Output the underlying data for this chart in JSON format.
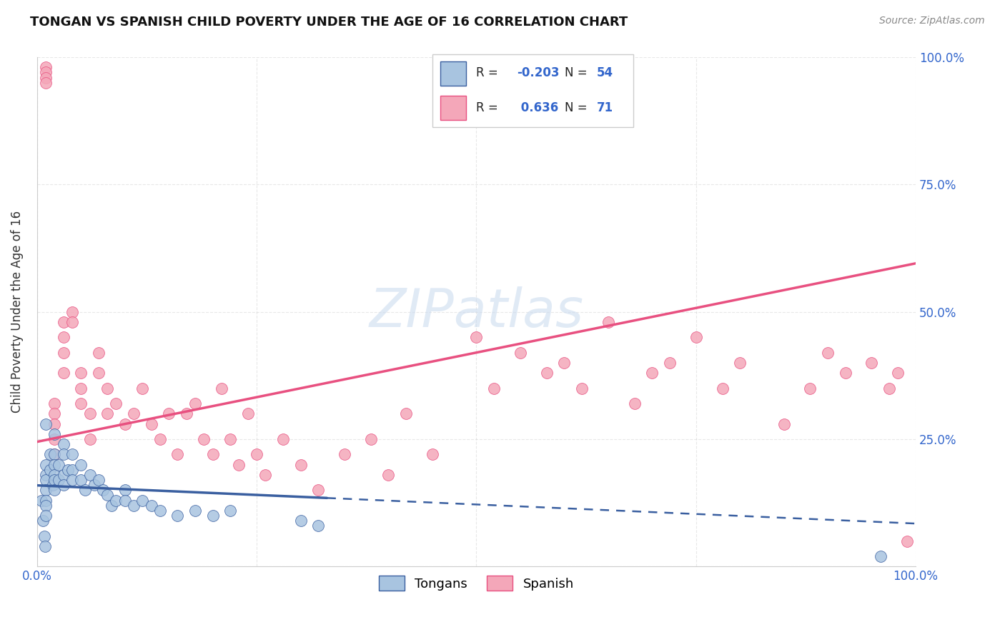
{
  "title": "TONGAN VS SPANISH CHILD POVERTY UNDER THE AGE OF 16 CORRELATION CHART",
  "source": "Source: ZipAtlas.com",
  "ylabel": "Child Poverty Under the Age of 16",
  "xlim": [
    0.0,
    1.0
  ],
  "ylim": [
    0.0,
    1.0
  ],
  "xticks": [
    0.0,
    0.25,
    0.5,
    0.75,
    1.0
  ],
  "yticks": [
    0.0,
    0.25,
    0.5,
    0.75,
    1.0
  ],
  "legend_r_tongan": "-0.203",
  "legend_n_tongan": "54",
  "legend_r_spanish": "0.636",
  "legend_n_spanish": "71",
  "tongan_color": "#a8c4e0",
  "spanish_color": "#f4a7b9",
  "tongan_line_color": "#3a5fa0",
  "spanish_line_color": "#e85080",
  "background_color": "#ffffff",
  "tongan_x": [
    0.005,
    0.007,
    0.008,
    0.009,
    0.01,
    0.01,
    0.01,
    0.01,
    0.01,
    0.01,
    0.01,
    0.01,
    0.015,
    0.015,
    0.018,
    0.02,
    0.02,
    0.02,
    0.02,
    0.02,
    0.02,
    0.025,
    0.025,
    0.03,
    0.03,
    0.03,
    0.03,
    0.035,
    0.04,
    0.04,
    0.04,
    0.05,
    0.05,
    0.055,
    0.06,
    0.065,
    0.07,
    0.075,
    0.08,
    0.085,
    0.09,
    0.1,
    0.1,
    0.11,
    0.12,
    0.13,
    0.14,
    0.16,
    0.18,
    0.2,
    0.22,
    0.3,
    0.32,
    0.96
  ],
  "tongan_y": [
    0.13,
    0.09,
    0.06,
    0.04,
    0.28,
    0.2,
    0.18,
    0.17,
    0.15,
    0.13,
    0.12,
    0.1,
    0.22,
    0.19,
    0.16,
    0.26,
    0.22,
    0.2,
    0.18,
    0.17,
    0.15,
    0.2,
    0.17,
    0.24,
    0.22,
    0.18,
    0.16,
    0.19,
    0.22,
    0.19,
    0.17,
    0.2,
    0.17,
    0.15,
    0.18,
    0.16,
    0.17,
    0.15,
    0.14,
    0.12,
    0.13,
    0.15,
    0.13,
    0.12,
    0.13,
    0.12,
    0.11,
    0.1,
    0.11,
    0.1,
    0.11,
    0.09,
    0.08,
    0.02
  ],
  "spanish_x": [
    0.01,
    0.01,
    0.01,
    0.01,
    0.02,
    0.02,
    0.02,
    0.02,
    0.02,
    0.03,
    0.03,
    0.03,
    0.03,
    0.04,
    0.04,
    0.05,
    0.05,
    0.05,
    0.06,
    0.06,
    0.07,
    0.07,
    0.08,
    0.08,
    0.09,
    0.1,
    0.11,
    0.12,
    0.13,
    0.14,
    0.15,
    0.16,
    0.17,
    0.18,
    0.19,
    0.2,
    0.21,
    0.22,
    0.23,
    0.24,
    0.25,
    0.26,
    0.28,
    0.3,
    0.32,
    0.35,
    0.38,
    0.4,
    0.42,
    0.45,
    0.5,
    0.52,
    0.55,
    0.58,
    0.6,
    0.62,
    0.65,
    0.68,
    0.7,
    0.72,
    0.75,
    0.78,
    0.8,
    0.85,
    0.88,
    0.9,
    0.92,
    0.95,
    0.97,
    0.98,
    0.99
  ],
  "spanish_y": [
    0.98,
    0.97,
    0.96,
    0.95,
    0.32,
    0.3,
    0.28,
    0.25,
    0.22,
    0.48,
    0.45,
    0.42,
    0.38,
    0.5,
    0.48,
    0.38,
    0.35,
    0.32,
    0.3,
    0.25,
    0.42,
    0.38,
    0.35,
    0.3,
    0.32,
    0.28,
    0.3,
    0.35,
    0.28,
    0.25,
    0.3,
    0.22,
    0.3,
    0.32,
    0.25,
    0.22,
    0.35,
    0.25,
    0.2,
    0.3,
    0.22,
    0.18,
    0.25,
    0.2,
    0.15,
    0.22,
    0.25,
    0.18,
    0.3,
    0.22,
    0.45,
    0.35,
    0.42,
    0.38,
    0.4,
    0.35,
    0.48,
    0.32,
    0.38,
    0.4,
    0.45,
    0.35,
    0.4,
    0.28,
    0.35,
    0.42,
    0.38,
    0.4,
    0.35,
    0.38,
    0.05
  ]
}
